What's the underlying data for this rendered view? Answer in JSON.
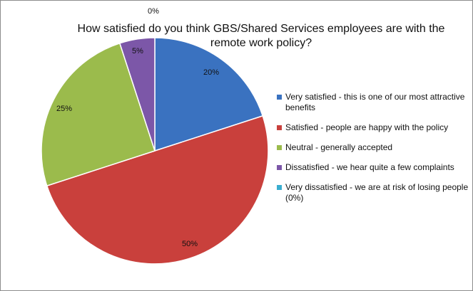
{
  "chart_data": {
    "type": "pie",
    "title": "How satisfied do you think GBS/Shared Services employees are with the remote work policy?",
    "slices": [
      {
        "label": "Very satisfied - this is one of our most attractive benefits",
        "value": 20,
        "data_label": "20%",
        "color": "#3a72c0"
      },
      {
        "label": "Satisfied - people are happy with the policy",
        "value": 50,
        "data_label": "50%",
        "color": "#c9403c"
      },
      {
        "label": "Neutral - generally accepted",
        "value": 25,
        "data_label": "25%",
        "color": "#9bbb4c"
      },
      {
        "label": "Dissatisfied - we hear quite a few complaints",
        "value": 5,
        "data_label": "5%",
        "color": "#7c57a8"
      },
      {
        "label": "Very dissatisfied - we are at risk of losing people (0%)",
        "value": 0,
        "data_label": "0%",
        "color": "#3aadcf"
      }
    ],
    "legend_position": "right"
  }
}
